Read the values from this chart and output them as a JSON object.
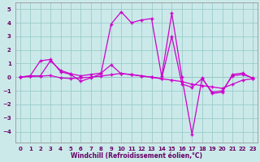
{
  "xlabel": "Windchill (Refroidissement éolien,°C)",
  "bg_color": "#cce9e9",
  "grid_color": "#99cccc",
  "line_color": "#cc00cc",
  "xlim": [
    -0.5,
    23.5
  ],
  "ylim": [
    -4.8,
    5.5
  ],
  "yticks": [
    -4,
    -3,
    -2,
    -1,
    0,
    1,
    2,
    3,
    4,
    5
  ],
  "xticks": [
    0,
    1,
    2,
    3,
    4,
    5,
    6,
    7,
    8,
    9,
    10,
    11,
    12,
    13,
    14,
    15,
    16,
    17,
    18,
    19,
    20,
    21,
    22,
    23
  ],
  "line1": [
    0.0,
    0.1,
    1.2,
    1.3,
    0.4,
    0.2,
    -0.3,
    -0.05,
    0.25,
    3.9,
    4.8,
    4.0,
    4.2,
    4.3,
    0.05,
    4.7,
    0.0,
    -4.2,
    -0.05,
    -1.2,
    -1.1,
    0.2,
    0.3,
    -0.1
  ],
  "line2": [
    0.0,
    0.1,
    0.1,
    1.2,
    0.5,
    0.25,
    0.1,
    0.2,
    0.3,
    0.9,
    0.25,
    0.2,
    0.1,
    0.0,
    -0.1,
    3.0,
    -0.5,
    -0.75,
    -0.1,
    -1.1,
    -1.0,
    0.1,
    0.2,
    -0.05
  ],
  "line3": [
    0.0,
    0.05,
    0.08,
    0.12,
    -0.05,
    -0.1,
    -0.05,
    0.0,
    0.08,
    0.18,
    0.28,
    0.18,
    0.08,
    0.0,
    -0.12,
    -0.22,
    -0.32,
    -0.52,
    -0.62,
    -0.72,
    -0.82,
    -0.52,
    -0.22,
    -0.12
  ]
}
